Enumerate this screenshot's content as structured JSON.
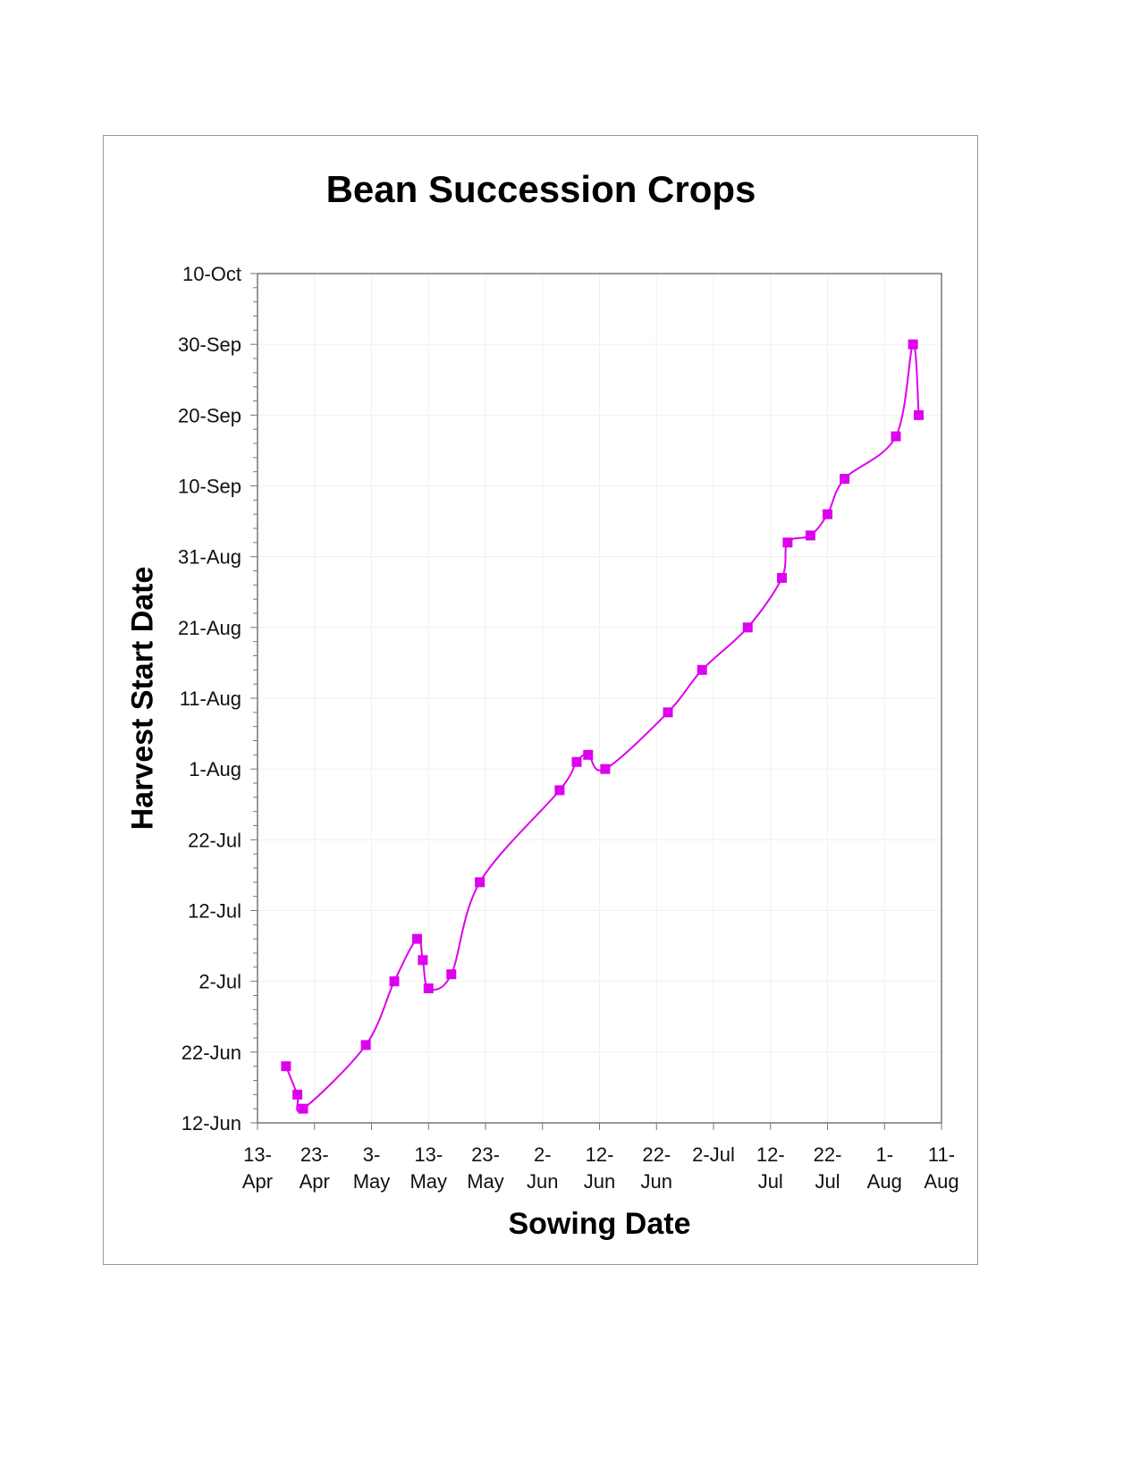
{
  "chart_data": {
    "type": "line",
    "title": "Bean Succession Crops",
    "xlabel": "Sowing Date",
    "ylabel": "Harvest Start Date",
    "xlim": [
      "13-Apr",
      "11-Aug"
    ],
    "ylim": [
      "12-Jun",
      "10-Oct"
    ],
    "x_tick_labels": [
      "13-Apr",
      "23-Apr",
      "3-May",
      "13-May",
      "23-May",
      "2-Jun",
      "12-Jun",
      "22-Jun",
      "2-Jul",
      "12-Jul",
      "22-Jul",
      "1-Aug",
      "11-Aug"
    ],
    "y_tick_labels": [
      "12-Jun",
      "22-Jun",
      "2-Jul",
      "12-Jul",
      "22-Jul",
      "1-Aug",
      "11-Aug",
      "21-Aug",
      "31-Aug",
      "10-Sep",
      "20-Sep",
      "30-Sep",
      "10-Oct"
    ],
    "grid": true,
    "smoothed": true,
    "marker": "square",
    "color": "#dd00ee",
    "series": [
      {
        "x": [
          "18-Apr",
          "20-Apr",
          "21-Apr",
          "2-May",
          "7-May",
          "11-May",
          "12-May",
          "13-May",
          "17-May",
          "22-May",
          "5-Jun",
          "8-Jun",
          "10-Jun",
          "13-Jun",
          "24-Jun",
          "30-Jun",
          "8-Jul",
          "14-Jul",
          "15-Jul",
          "19-Jul",
          "22-Jul",
          "25-Jul",
          "3-Aug",
          "6-Aug",
          "7-Aug"
        ],
        "y": [
          "20-Jun",
          "16-Jun",
          "14-Jun",
          "23-Jun",
          "2-Jul",
          "8-Jul",
          "5-Jul",
          "1-Jul",
          "3-Jul",
          "16-Jul",
          "29-Jul",
          "2-Aug",
          "3-Aug",
          "1-Aug",
          "9-Aug",
          "15-Aug",
          "21-Aug",
          "28-Aug",
          "2-Sep",
          "3-Sep",
          "6-Sep",
          "11-Sep",
          "17-Sep",
          "30-Sep",
          "20-Sep"
        ]
      }
    ]
  }
}
